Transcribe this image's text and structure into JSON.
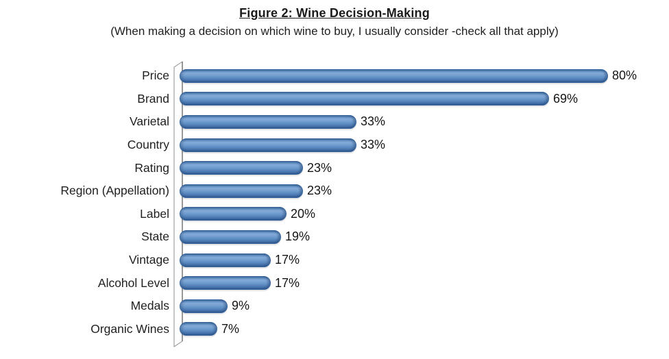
{
  "header": {
    "title": "Figure 2: Wine Decision-Making",
    "subtitle": "(When making a decision on which wine to buy, I usually consider -check all that apply)"
  },
  "chart_data": {
    "type": "bar",
    "orientation": "horizontal",
    "title": "Figure 2: Wine Decision-Making",
    "subtitle": "(When making a decision on which wine to buy, I usually consider -check all that apply)",
    "categories": [
      "Price",
      "Brand",
      "Varietal",
      "Country",
      "Rating",
      "Region (Appellation)",
      "Label",
      "State",
      "Vintage",
      "Alcohol Level",
      "Medals",
      "Organic Wines"
    ],
    "values": [
      80,
      69,
      33,
      33,
      23,
      23,
      20,
      19,
      17,
      17,
      9,
      7
    ],
    "value_suffix": "%",
    "xlim": [
      0,
      85
    ],
    "grid": false,
    "legend": false,
    "data_labels": "outside-end",
    "colors": {
      "bar_light": "#84abd9",
      "bar_mid": "#6696ca",
      "bar_dark": "#3c67a0",
      "bar_outline": "#35639c",
      "axis_line": "#7d7d7d",
      "wall_border": "#8f8f8f",
      "wall_fill": "#fefefe",
      "text": "#1c1c1c"
    }
  }
}
